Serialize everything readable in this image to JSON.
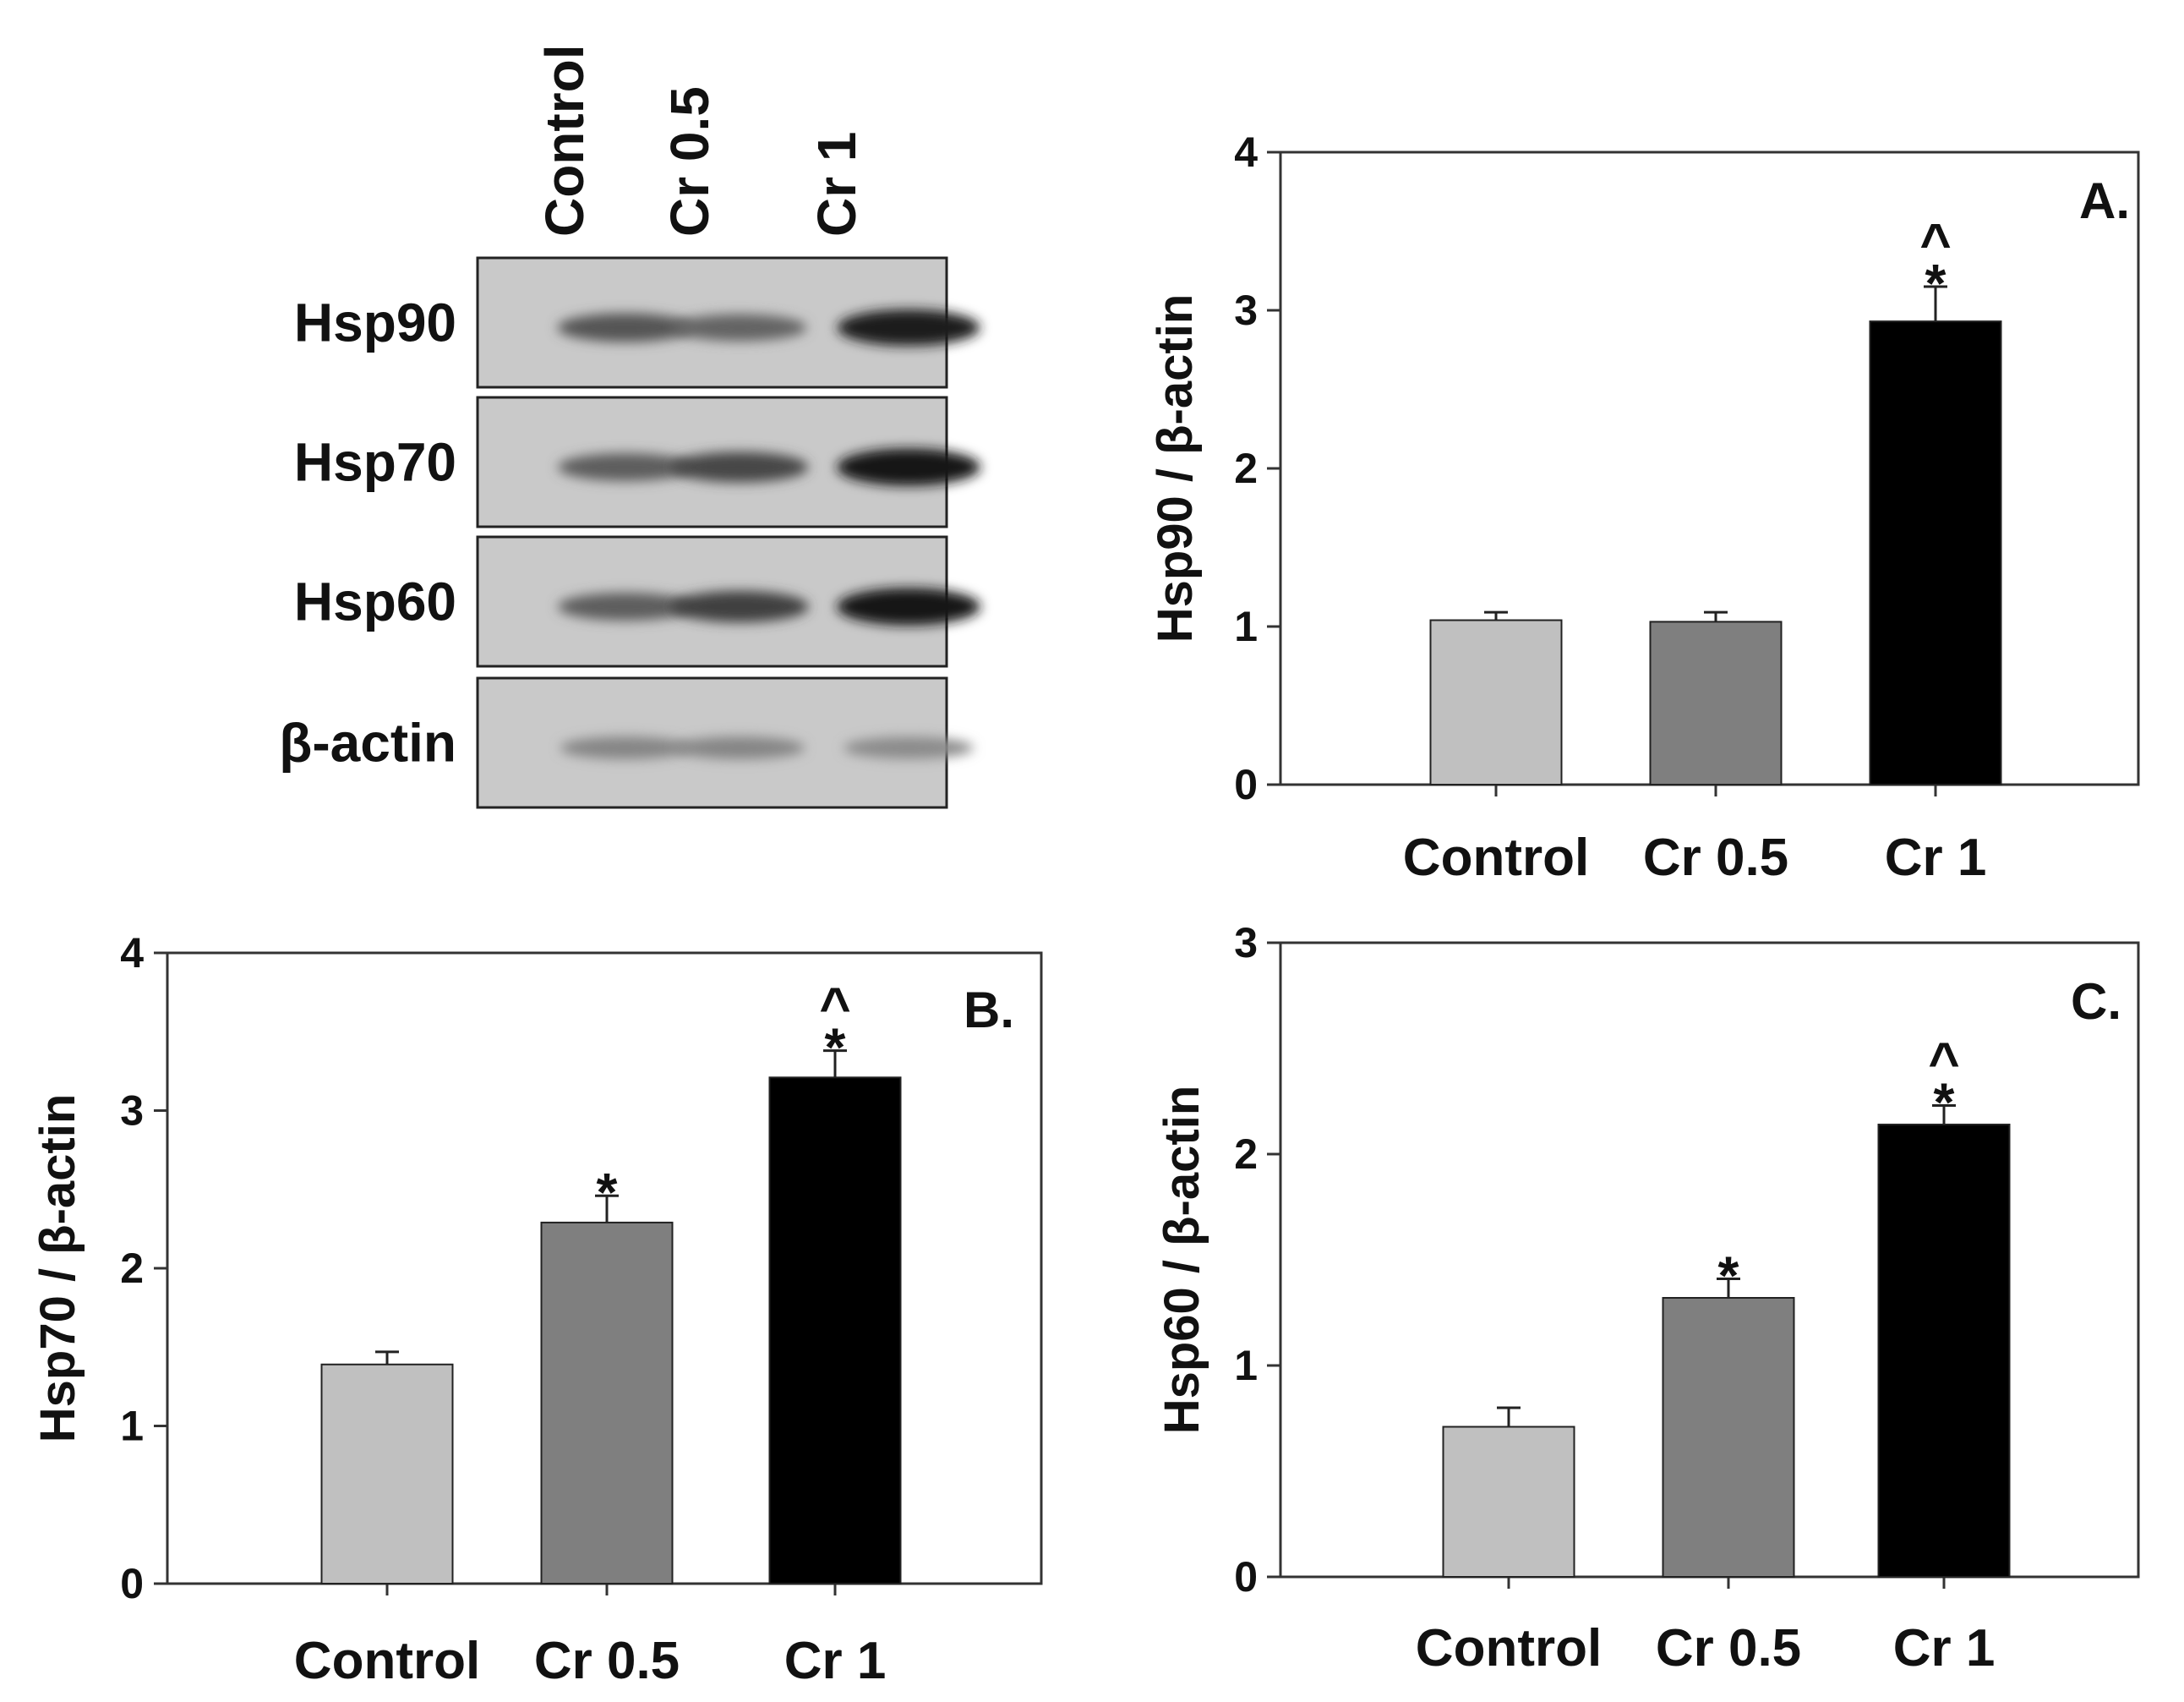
{
  "blot": {
    "lanes": [
      "Control",
      "Cr 0.5",
      "Cr 1"
    ],
    "rows": [
      {
        "label": "Hsp90",
        "intensity": [
          0.55,
          0.45,
          0.95
        ]
      },
      {
        "label": "Hsp70",
        "intensity": [
          0.5,
          0.65,
          1.0
        ]
      },
      {
        "label": "Hsp60",
        "intensity": [
          0.5,
          0.7,
          1.0
        ]
      },
      {
        "label": "β-actin",
        "intensity": [
          0.22,
          0.22,
          0.18
        ]
      }
    ]
  },
  "chart_data": [
    {
      "type": "bar",
      "panel": "A.",
      "ylabel": "Hsp90 / β-actin",
      "categories": [
        "Control",
        "Cr 0.5",
        "Cr 1"
      ],
      "values": [
        1.04,
        1.03,
        2.93
      ],
      "errors": [
        0.05,
        0.06,
        0.22
      ],
      "annotations": [
        [],
        [],
        [
          "*",
          "^"
        ]
      ],
      "ylim": [
        0,
        4
      ],
      "yticks": [
        0,
        1,
        2,
        3,
        4
      ],
      "colors": [
        "#c0c0c0",
        "#7f7f7f",
        "#000000"
      ]
    },
    {
      "type": "bar",
      "panel": "B.",
      "ylabel": "Hsp70 / β-actin",
      "categories": [
        "Control",
        "Cr 0.5",
        "Cr 1"
      ],
      "values": [
        1.39,
        2.29,
        3.21
      ],
      "errors": [
        0.08,
        0.17,
        0.17
      ],
      "annotations": [
        [],
        [
          "*"
        ],
        [
          "*",
          "^"
        ]
      ],
      "ylim": [
        0,
        4
      ],
      "yticks": [
        0,
        1,
        2,
        3,
        4
      ],
      "colors": [
        "#c0c0c0",
        "#7f7f7f",
        "#000000"
      ]
    },
    {
      "type": "bar",
      "panel": "C.",
      "ylabel": "Hsp60 / β-actin",
      "categories": [
        "Control",
        "Cr 0.5",
        "Cr 1"
      ],
      "values": [
        0.71,
        1.32,
        2.14
      ],
      "errors": [
        0.09,
        0.09,
        0.09
      ],
      "annotations": [
        [],
        [
          "*"
        ],
        [
          "*",
          "^"
        ]
      ],
      "ylim": [
        0,
        3
      ],
      "yticks": [
        0,
        1,
        2,
        3
      ],
      "colors": [
        "#c0c0c0",
        "#7f7f7f",
        "#000000"
      ]
    }
  ]
}
